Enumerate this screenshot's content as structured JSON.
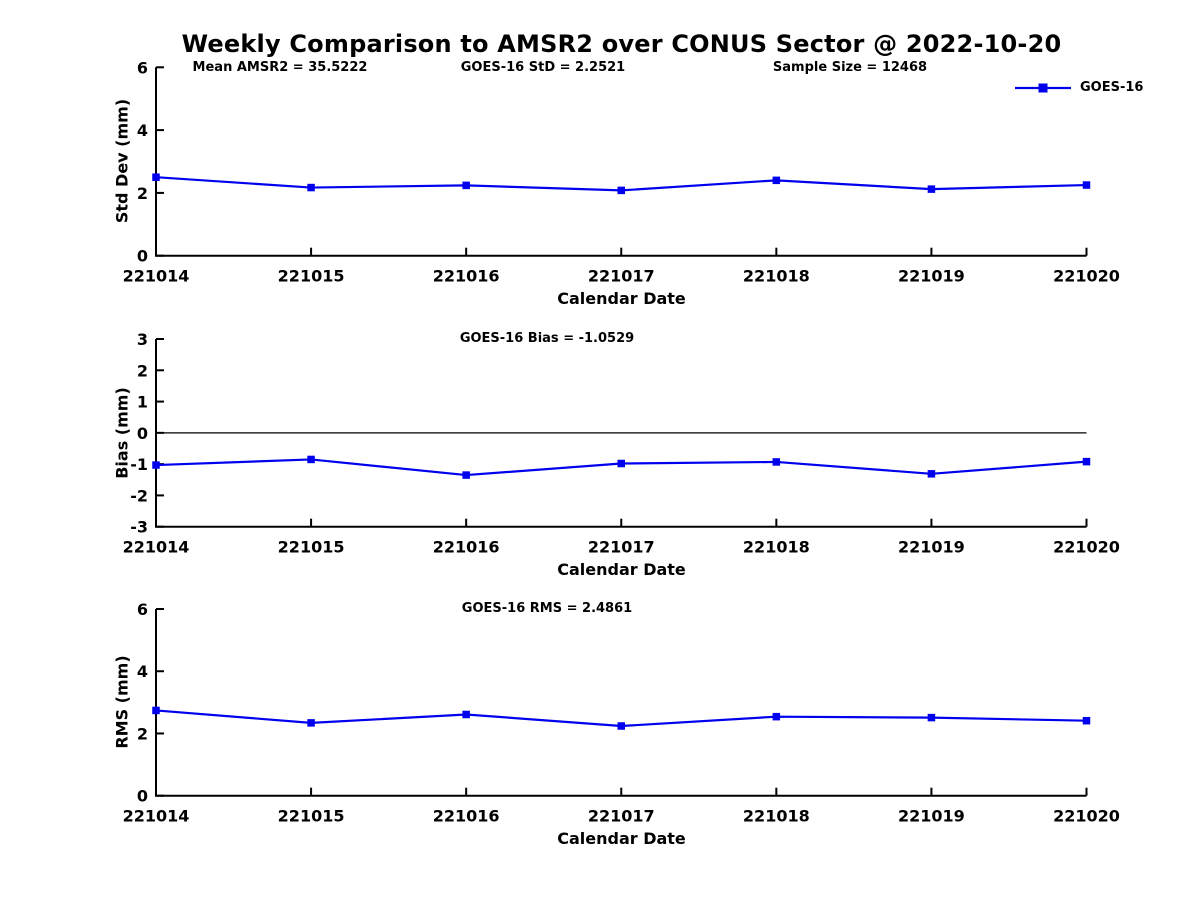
{
  "title": "Weekly Comparison to AMSR2 over CONUS Sector @ 2022-10-20",
  "accent_color": "#0000EE",
  "axis_color": "#000000",
  "chart_data": [
    {
      "type": "line",
      "name": "std-dev-subplot",
      "categories": [
        "221014",
        "221015",
        "221016",
        "221017",
        "221018",
        "221019",
        "221020"
      ],
      "series": [
        {
          "name": "GOES-16",
          "values": [
            2.5,
            2.17,
            2.24,
            2.08,
            2.4,
            2.12,
            2.25
          ]
        }
      ],
      "xlabel": "Calendar Date",
      "ylabel": "Std Dev (mm)",
      "ylim": [
        0,
        6
      ],
      "yticks": [
        0,
        2,
        4,
        6
      ],
      "zero_line": false,
      "grid": false,
      "annotations": [
        "Mean AMSR2 = 35.5222",
        "GOES-16 StD = 2.2521",
        "Sample Size = 12468"
      ],
      "legend": {
        "label": "GOES-16",
        "position": "top-right-outside",
        "marker": "filled-square",
        "color": "#0000EE"
      }
    },
    {
      "type": "line",
      "name": "bias-subplot",
      "categories": [
        "221014",
        "221015",
        "221016",
        "221017",
        "221018",
        "221019",
        "221020"
      ],
      "series": [
        {
          "name": "GOES-16",
          "values": [
            -1.03,
            -0.85,
            -1.35,
            -0.98,
            -0.93,
            -1.31,
            -0.92
          ]
        }
      ],
      "xlabel": "Calendar Date",
      "ylabel": "Bias (mm)",
      "ylim": [
        -3,
        3
      ],
      "yticks": [
        -3,
        -2,
        -1,
        0,
        1,
        2,
        3
      ],
      "zero_line": true,
      "grid": false,
      "annotations": [
        "GOES-16 Bias  = -1.0529"
      ]
    },
    {
      "type": "line",
      "name": "rms-subplot",
      "categories": [
        "221014",
        "221015",
        "221016",
        "221017",
        "221018",
        "221019",
        "221020"
      ],
      "series": [
        {
          "name": "GOES-16",
          "values": [
            2.74,
            2.34,
            2.61,
            2.24,
            2.54,
            2.51,
            2.41
          ]
        }
      ],
      "xlabel": "Calendar Date",
      "ylabel": "RMS (mm)",
      "ylim": [
        0,
        6
      ],
      "yticks": [
        0,
        2,
        4,
        6
      ],
      "zero_line": false,
      "grid": false,
      "annotations": [
        "GOES-16 RMS = 2.4861"
      ]
    }
  ]
}
